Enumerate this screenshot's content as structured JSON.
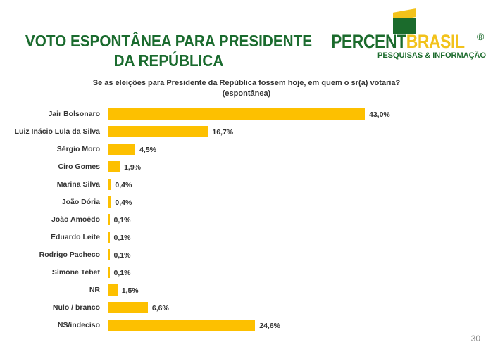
{
  "header": {
    "title": "VOTO ESPONTÂNEA PARA PRESIDENTE DA REPÚBLICA"
  },
  "logo": {
    "brand_part1": "PERCENT",
    "brand_part2": "BRASIL",
    "registered": "®",
    "tagline": "PESQUISAS & INFORMAÇÃO"
  },
  "chart_data": {
    "type": "bar",
    "orientation": "horizontal",
    "title": "Se as eleições para Presidente da República fossem hoje, em quem o sr(a) votaria?",
    "subtitle": "(espontânea)",
    "categories": [
      "Jair Bolsonaro",
      "Luiz Inácio Lula da Silva",
      "Sérgio Moro",
      "Ciro Gomes",
      "Marina Silva",
      "João Dória",
      "João Amoêdo",
      "Eduardo Leite",
      "Rodrigo Pacheco",
      "Simone Tebet",
      "NR",
      "Nulo / branco",
      "NS/indeciso"
    ],
    "values": [
      43.0,
      16.7,
      4.5,
      1.9,
      0.4,
      0.4,
      0.1,
      0.1,
      0.1,
      0.1,
      1.5,
      6.6,
      24.6
    ],
    "labels": [
      "43,0%",
      "16,7%",
      "4,5%",
      "1,9%",
      "0,4%",
      "0,4%",
      "0,1%",
      "0,1%",
      "0,1%",
      "0,1%",
      "1,5%",
      "6,6%",
      "24,6%"
    ],
    "bar_color": "#fdc000",
    "xlim": [
      0,
      43
    ]
  },
  "footer": {
    "page": "30"
  }
}
